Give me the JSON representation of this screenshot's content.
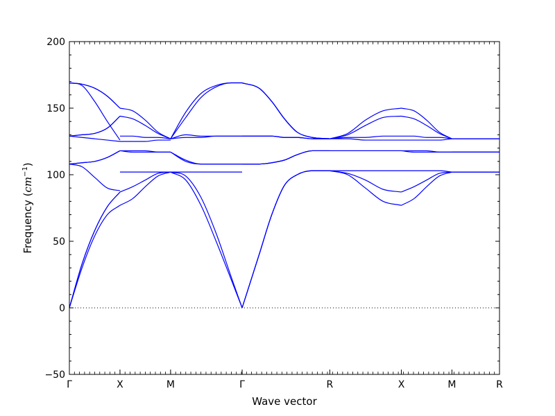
{
  "chart_data": {
    "type": "line",
    "title": "",
    "xlabel": "Wave vector",
    "ylabel": "Frequency (cm⁻¹)",
    "ylabel_parts": {
      "main": "Frequency (",
      "italic": "cm",
      "sup": "−1",
      "close": ")"
    },
    "ylim": [
      -50,
      200
    ],
    "yticks": [
      "−50",
      "0",
      "50",
      "100",
      "150",
      "200"
    ],
    "ytick_values": [
      -50,
      0,
      50,
      100,
      150,
      200
    ],
    "xlim": [
      0,
      8.5
    ],
    "xticks": [
      {
        "label": "Γ",
        "x": 0
      },
      {
        "label": "X",
        "x": 1
      },
      {
        "label": "M",
        "x": 2
      },
      {
        "label": "Γ",
        "x": 3.414
      },
      {
        "label": "R",
        "x": 5.146
      },
      {
        "label": "X",
        "x": 6.56
      },
      {
        "label": "M",
        "x": 7.56
      },
      {
        "label": "R",
        "x": 8.5
      }
    ],
    "zero_line": {
      "y": 0,
      "style": "dotted"
    },
    "line_color": "#0000ff",
    "segments": [
      {
        "name": "Γ-X",
        "x": [
          0,
          0.25,
          0.5,
          0.75,
          1
        ],
        "series": [
          [
            0,
            30,
            54,
            70,
            77
          ],
          [
            0,
            33,
            58,
            76,
            87
          ],
          [
            0,
            33,
            58,
            76,
            87
          ],
          [
            108,
            106,
            98,
            90,
            88
          ],
          [
            108,
            109,
            110,
            113,
            118
          ],
          [
            108,
            109,
            110,
            113,
            118
          ],
          [
            129,
            128,
            127,
            126,
            125
          ],
          [
            129,
            130,
            131,
            135,
            144
          ],
          [
            129,
            130,
            131,
            135,
            144
          ],
          [
            169,
            167,
            155,
            140,
            126
          ],
          [
            169,
            168,
            165,
            159,
            150
          ],
          [
            169,
            168,
            165,
            159,
            150
          ]
        ]
      },
      {
        "name": "X-M",
        "x": [
          1,
          1.25,
          1.5,
          1.75,
          2
        ],
        "series": [
          [
            77,
            82,
            91,
            99,
            102
          ],
          [
            87,
            91,
            96,
            101,
            102
          ],
          [
            102,
            102,
            102,
            102,
            102
          ],
          [
            118,
            118,
            118,
            117,
            117
          ],
          [
            118,
            117,
            117,
            117,
            117
          ],
          [
            125,
            125,
            125,
            126,
            126
          ],
          [
            144,
            142,
            137,
            131,
            127
          ],
          [
            150,
            148,
            141,
            132,
            127
          ],
          [
            129,
            129,
            128,
            128,
            127
          ]
        ]
      },
      {
        "name": "M-Γ",
        "x": [
          2,
          2.3,
          2.6,
          2.9,
          3.2,
          3.414
        ],
        "series": [
          [
            102,
            99,
            83,
            56,
            23,
            0
          ],
          [
            102,
            96,
            77,
            50,
            21,
            0
          ],
          [
            102,
            102,
            102,
            102,
            102,
            102
          ],
          [
            117,
            111,
            108,
            108,
            108,
            108
          ],
          [
            117,
            110,
            108,
            108,
            108,
            108
          ],
          [
            127,
            130,
            129,
            129,
            129,
            129
          ],
          [
            127,
            147,
            161,
            167,
            169,
            169
          ],
          [
            127,
            143,
            158,
            166,
            169,
            169
          ],
          [
            127,
            128,
            128,
            129,
            129,
            129
          ]
        ]
      },
      {
        "name": "Γ-R",
        "x": [
          3.414,
          3.75,
          4.0,
          4.25,
          4.5,
          4.8,
          5.146
        ],
        "series": [
          [
            0,
            40,
            70,
            92,
            100,
            103,
            103
          ],
          [
            0,
            40,
            70,
            92,
            100,
            103,
            103
          ],
          [
            0,
            40,
            70,
            92,
            100,
            103,
            103
          ],
          [
            108,
            108,
            109,
            111,
            115,
            118,
            118
          ],
          [
            108,
            108,
            109,
            111,
            115,
            118,
            118
          ],
          [
            108,
            108,
            109,
            111,
            115,
            118,
            118
          ],
          [
            169,
            165,
            155,
            142,
            132,
            128,
            127
          ],
          [
            169,
            165,
            155,
            142,
            132,
            128,
            127
          ],
          [
            169,
            165,
            155,
            142,
            132,
            128,
            127
          ],
          [
            129,
            129,
            129,
            128,
            128,
            127,
            127
          ],
          [
            129,
            129,
            129,
            128,
            128,
            127,
            127
          ],
          [
            129,
            129,
            129,
            128,
            128,
            127,
            127
          ]
        ]
      },
      {
        "name": "R-X",
        "x": [
          5.146,
          5.5,
          5.85,
          6.2,
          6.56
        ],
        "series": [
          [
            103,
            100,
            90,
            80,
            77
          ],
          [
            103,
            101,
            96,
            89,
            87
          ],
          [
            103,
            103,
            103,
            103,
            103
          ],
          [
            118,
            118,
            118,
            118,
            118
          ],
          [
            118,
            118,
            118,
            118,
            118
          ],
          [
            127,
            127,
            126,
            126,
            126
          ],
          [
            127,
            130,
            137,
            143,
            144
          ],
          [
            127,
            131,
            141,
            148,
            150
          ],
          [
            127,
            128,
            128,
            129,
            129
          ]
        ]
      },
      {
        "name": "X-M",
        "x": [
          6.56,
          6.81,
          7.06,
          7.31,
          7.56
        ],
        "series": [
          [
            77,
            82,
            91,
            99,
            102
          ],
          [
            87,
            91,
            96,
            101,
            102
          ],
          [
            103,
            103,
            103,
            103,
            102
          ],
          [
            118,
            118,
            118,
            117,
            117
          ],
          [
            118,
            117,
            117,
            117,
            117
          ],
          [
            126,
            126,
            126,
            126,
            127
          ],
          [
            144,
            142,
            137,
            131,
            127
          ],
          [
            150,
            148,
            141,
            132,
            127
          ],
          [
            129,
            129,
            128,
            128,
            127
          ]
        ]
      },
      {
        "name": "M-R",
        "x": [
          7.56,
          8.03,
          8.5
        ],
        "series": [
          [
            102,
            102,
            102
          ],
          [
            102,
            102,
            102
          ],
          [
            102,
            102,
            102
          ],
          [
            117,
            117,
            117
          ],
          [
            117,
            117,
            117
          ],
          [
            117,
            117,
            117
          ],
          [
            127,
            127,
            127
          ],
          [
            127,
            127,
            127
          ],
          [
            127,
            127,
            127
          ]
        ]
      }
    ]
  }
}
